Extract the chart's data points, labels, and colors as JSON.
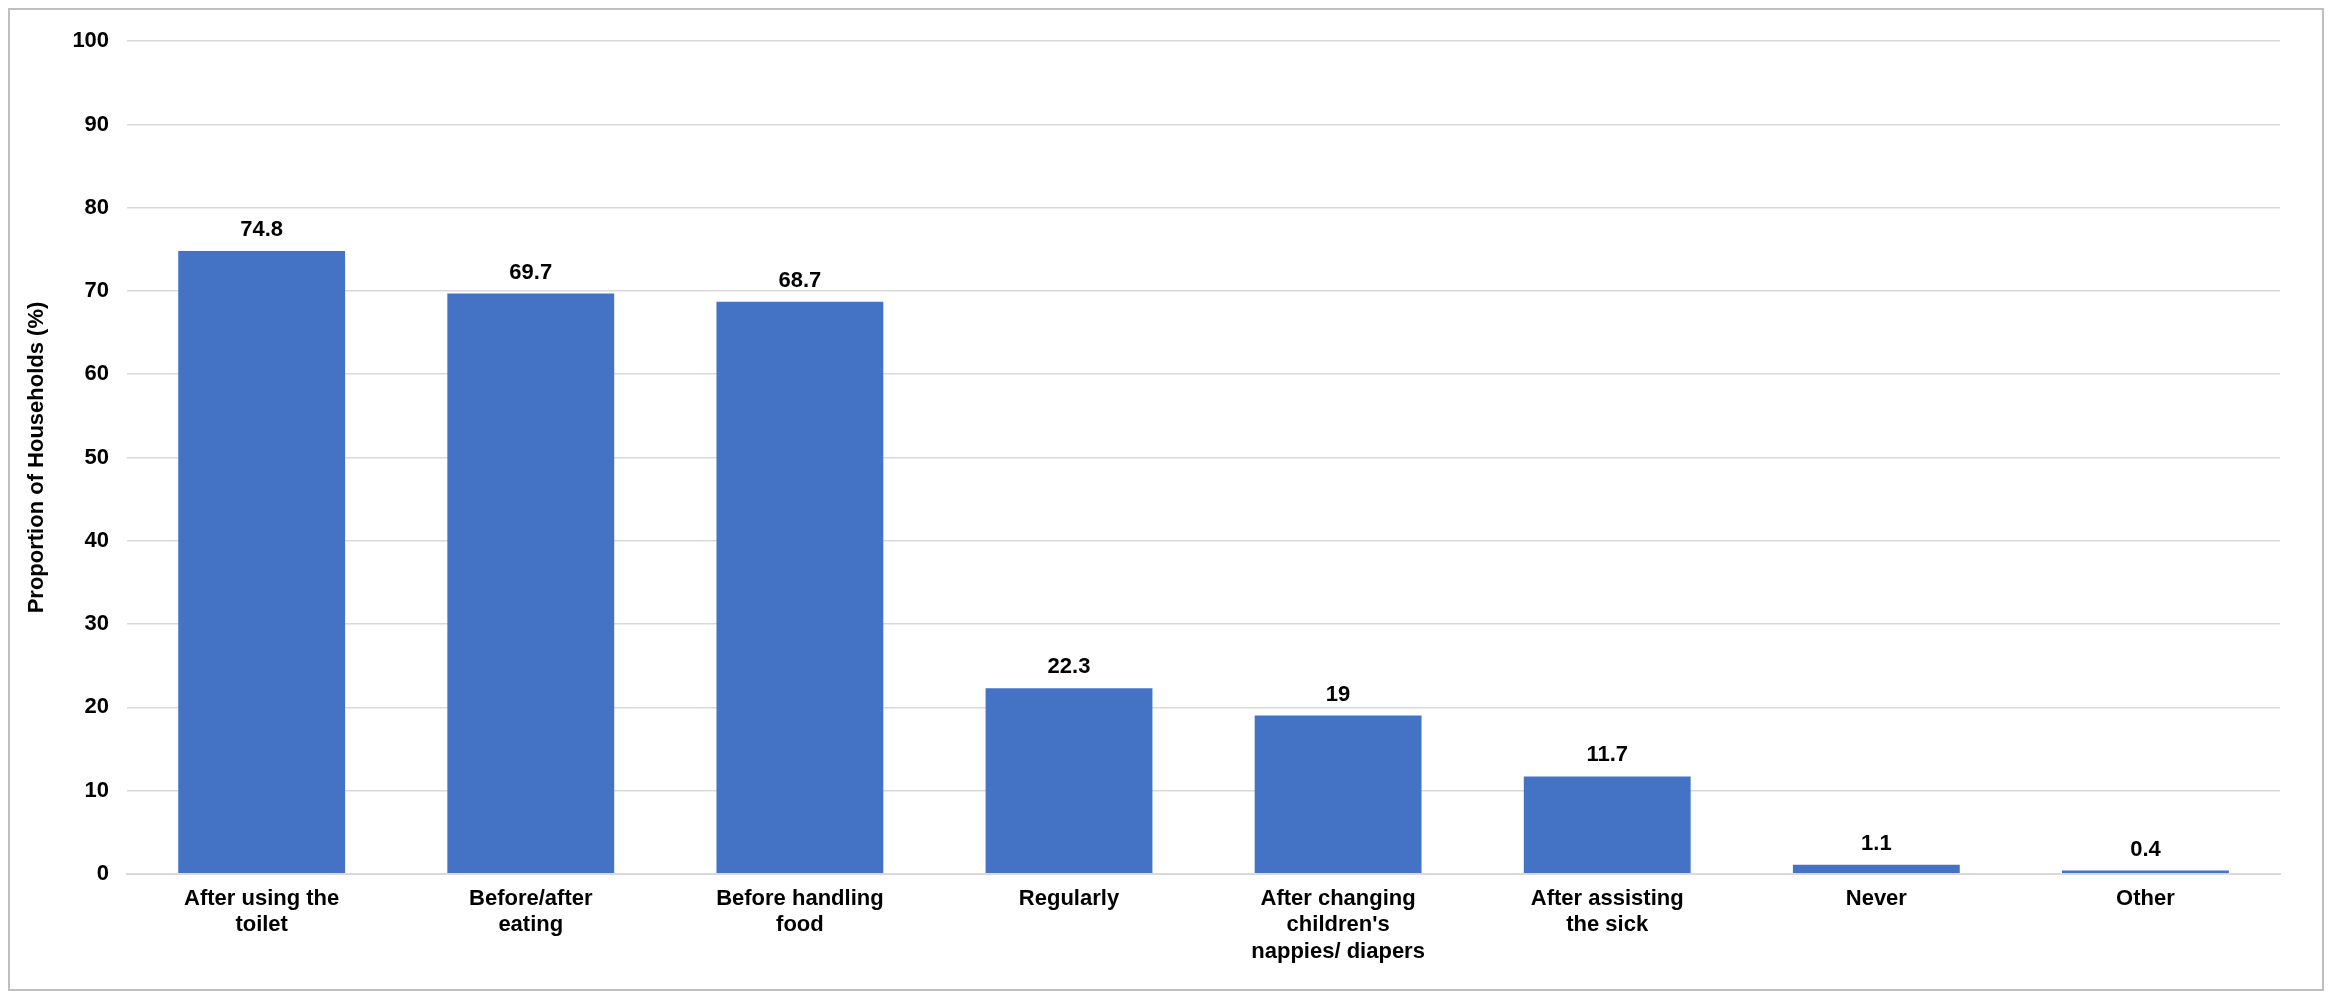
{
  "chart_data": {
    "type": "bar",
    "ylabel": "Proportion of Households (%)",
    "categories": [
      "After using the toilet",
      "Before/after eating",
      "Before handling food",
      "Regularly",
      "After changing children's nappies/ diapers",
      "After assisting the sick",
      "Never",
      "Other"
    ],
    "values": [
      74.8,
      69.7,
      68.7,
      22.3,
      19,
      11.7,
      1.1,
      0.4
    ],
    "color": "#4472c4",
    "ylim": [
      0,
      100
    ],
    "yticks": [
      0,
      10,
      20,
      30,
      40,
      50,
      60,
      70,
      80,
      90,
      100
    ],
    "grid": "y",
    "data_labels": true,
    "legend": false
  }
}
